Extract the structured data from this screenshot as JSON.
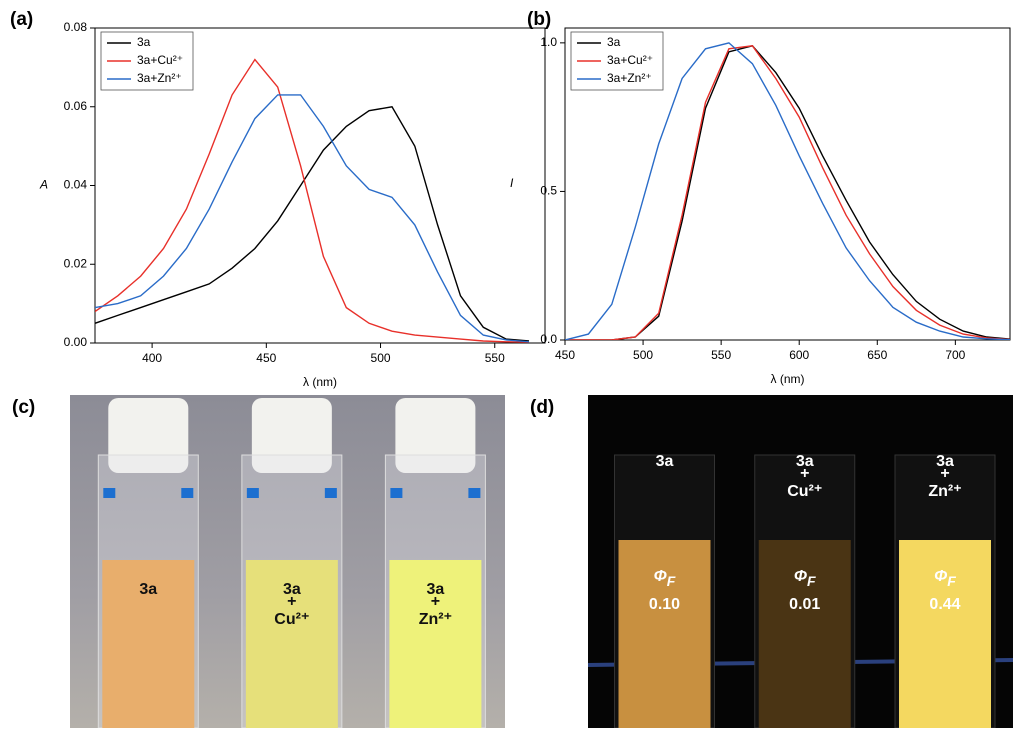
{
  "chart_data": [
    {
      "type": "line",
      "panel_label": "(a)",
      "xlabel": "λ (nm)",
      "ylabel": "A",
      "x": [
        375,
        385,
        395,
        405,
        415,
        425,
        435,
        445,
        455,
        465,
        475,
        485,
        495,
        505,
        515,
        525,
        535,
        545,
        555,
        565
      ],
      "xlim": [
        375,
        572
      ],
      "xticks": [
        400,
        450,
        500,
        550
      ],
      "ylim": [
        0,
        0.08
      ],
      "yticks": [
        {
          "value": 0,
          "label": "0.00"
        },
        {
          "value": 0.02,
          "label": "0.02"
        },
        {
          "value": 0.04,
          "label": "0.04"
        },
        {
          "value": 0.06,
          "label": "0.06"
        },
        {
          "value": 0.08,
          "label": "0.08"
        }
      ],
      "series": [
        {
          "name": "3a",
          "color": "#000000",
          "values": [
            0.005,
            0.007,
            0.009,
            0.011,
            0.013,
            0.015,
            0.019,
            0.024,
            0.031,
            0.04,
            0.049,
            0.055,
            0.059,
            0.06,
            0.05,
            0.03,
            0.012,
            0.004,
            0.001,
            0.0005
          ]
        },
        {
          "name": "3a+Cu²⁺",
          "color": "#e8302a",
          "values": [
            0.008,
            0.012,
            0.017,
            0.024,
            0.034,
            0.048,
            0.063,
            0.072,
            0.065,
            0.045,
            0.022,
            0.009,
            0.005,
            0.003,
            0.002,
            0.0015,
            0.001,
            0.0005,
            0.0003,
            0.0002
          ]
        },
        {
          "name": "3a+Zn²⁺",
          "color": "#2a6cc8",
          "values": [
            0.009,
            0.01,
            0.012,
            0.017,
            0.024,
            0.034,
            0.046,
            0.057,
            0.063,
            0.063,
            0.055,
            0.045,
            0.039,
            0.037,
            0.03,
            0.018,
            0.007,
            0.002,
            0.0008,
            0.0003
          ]
        }
      ]
    },
    {
      "type": "line",
      "panel_label": "(b)",
      "xlabel": "λ (nm)",
      "ylabel": "I",
      "x": [
        450,
        465,
        480,
        495,
        510,
        525,
        540,
        555,
        570,
        585,
        600,
        615,
        630,
        645,
        660,
        675,
        690,
        705,
        720,
        735
      ],
      "xlim": [
        450,
        735
      ],
      "xticks": [
        450,
        500,
        550,
        600,
        650,
        700
      ],
      "ylim": [
        0,
        1.05
      ],
      "yticks": [
        {
          "value": 0,
          "label": "0.0"
        },
        {
          "value": 0.5,
          "label": "0.5"
        },
        {
          "value": 1,
          "label": "1.0"
        }
      ],
      "series": [
        {
          "name": "3a",
          "color": "#000000",
          "values": [
            0,
            0,
            0,
            0.01,
            0.08,
            0.4,
            0.78,
            0.97,
            0.99,
            0.9,
            0.78,
            0.62,
            0.47,
            0.33,
            0.22,
            0.13,
            0.07,
            0.03,
            0.01,
            0.003
          ]
        },
        {
          "name": "3a+Cu²⁺",
          "color": "#e8302a",
          "values": [
            0,
            0,
            0,
            0.01,
            0.09,
            0.42,
            0.8,
            0.98,
            0.99,
            0.88,
            0.75,
            0.58,
            0.42,
            0.29,
            0.18,
            0.1,
            0.05,
            0.02,
            0.007,
            0.002
          ]
        },
        {
          "name": "3a+Zn²⁺",
          "color": "#2a6cc8",
          "values": [
            0,
            0.02,
            0.12,
            0.38,
            0.66,
            0.88,
            0.98,
            1.0,
            0.93,
            0.79,
            0.62,
            0.46,
            0.31,
            0.2,
            0.11,
            0.06,
            0.03,
            0.01,
            0.004,
            0.001
          ]
        }
      ]
    }
  ],
  "panels": {
    "c": {
      "label": "(c)",
      "samples": [
        {
          "lines": [
            "3a"
          ]
        },
        {
          "lines": [
            "3a",
            "+",
            "Cu²⁺"
          ]
        },
        {
          "lines": [
            "3a",
            "+",
            "Zn²⁺"
          ]
        }
      ]
    },
    "d": {
      "label": "(d)",
      "samples": [
        {
          "lines": [
            "3a"
          ],
          "symbol": "Φ",
          "subscript": "F",
          "yield": "0.10"
        },
        {
          "lines": [
            "3a",
            "+",
            "Cu²⁺"
          ],
          "symbol": "Φ",
          "subscript": "F",
          "yield": "0.01"
        },
        {
          "lines": [
            "3a",
            "+",
            "Zn²⁺"
          ],
          "symbol": "Φ",
          "subscript": "F",
          "yield": "0.44"
        }
      ]
    }
  }
}
